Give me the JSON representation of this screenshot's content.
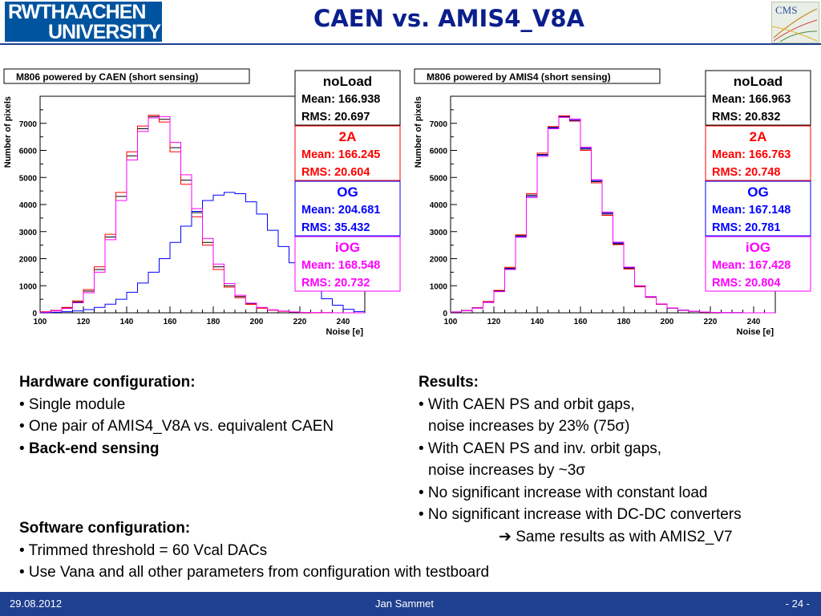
{
  "header": {
    "logo_line1": "RWTHAACHEN",
    "logo_line2": "UNIVERSITY",
    "title": "CAEN vs. AMIS4_V8A",
    "cms_logo": "CMS"
  },
  "colors": {
    "header_blue": "#1f3f8f",
    "noLoad": "#000000",
    "2A": "#ff0000",
    "OG": "#0000ff",
    "iOG": "#ff00ff"
  },
  "chart_data": [
    {
      "type": "histogram",
      "title": "M806 powered by CAEN (short sensing)",
      "xlabel": "Noise [e]",
      "ylabel": "Number of pixels",
      "xlim": [
        100,
        250
      ],
      "ylim": [
        0,
        8000
      ],
      "xticks": [
        100,
        120,
        140,
        160,
        180,
        200,
        220,
        240
      ],
      "yticks": [
        0,
        1000,
        2000,
        3000,
        4000,
        5000,
        6000,
        7000
      ],
      "bin_width": 5,
      "series": [
        {
          "name": "noLoad",
          "color": "#000000",
          "mean": "Mean: 166.938",
          "rms": "RMS: 20.697",
          "values": [
            30,
            80,
            180,
            400,
            800,
            1600,
            2800,
            4300,
            5800,
            6800,
            7250,
            7150,
            6100,
            4900,
            3700,
            2600,
            1700,
            1000,
            600,
            330,
            180,
            100,
            60,
            30,
            15,
            5,
            2,
            1,
            0,
            0
          ]
        },
        {
          "name": "2A",
          "color": "#ff0000",
          "mean": "Mean: 166.245",
          "rms": "RMS: 20.604",
          "values": [
            40,
            90,
            200,
            440,
            860,
            1700,
            2900,
            4450,
            5950,
            6900,
            7300,
            7050,
            5950,
            4750,
            3550,
            2500,
            1600,
            950,
            560,
            310,
            170,
            95,
            55,
            28,
            12,
            4,
            2,
            1,
            0,
            0
          ]
        },
        {
          "name": "OG",
          "color": "#0000ff",
          "mean": "Mean: 204.681",
          "rms": "RMS: 35.432",
          "values": [
            10,
            20,
            40,
            70,
            120,
            200,
            320,
            500,
            760,
            1100,
            1500,
            2000,
            2600,
            3200,
            3750,
            4150,
            4350,
            4450,
            4400,
            4100,
            3650,
            3050,
            2450,
            1850,
            1300,
            850,
            520,
            280,
            130,
            50
          ]
        },
        {
          "name": "iOG",
          "color": "#ff00ff",
          "mean": "Mean: 168.548",
          "rms": "RMS: 20.732",
          "values": [
            25,
            70,
            160,
            370,
            740,
            1500,
            2700,
            4150,
            5650,
            6700,
            7200,
            7250,
            6300,
            5100,
            3850,
            2750,
            1800,
            1080,
            650,
            360,
            200,
            110,
            65,
            33,
            16,
            6,
            2,
            1,
            0,
            0
          ]
        }
      ]
    },
    {
      "type": "histogram",
      "title": "M806 powered by AMIS4 (short sensing)",
      "xlabel": "Noise [e]",
      "ylabel": "Number of pixels",
      "xlim": [
        100,
        250
      ],
      "ylim": [
        0,
        8000
      ],
      "xticks": [
        100,
        120,
        140,
        160,
        180,
        200,
        220,
        240
      ],
      "yticks": [
        0,
        1000,
        2000,
        3000,
        4000,
        5000,
        6000,
        7000
      ],
      "bin_width": 5,
      "series": [
        {
          "name": "noLoad",
          "color": "#000000",
          "mean": "Mean: 166.963",
          "rms": "RMS: 20.832",
          "values": [
            30,
            80,
            180,
            400,
            800,
            1650,
            2850,
            4350,
            5850,
            6850,
            7250,
            7100,
            6050,
            4850,
            3650,
            2550,
            1650,
            980,
            580,
            320,
            175,
            95,
            55,
            28,
            12,
            4,
            2,
            1,
            0,
            0
          ]
        },
        {
          "name": "2A",
          "color": "#ff0000",
          "mean": "Mean: 166.763",
          "rms": "RMS: 20.748",
          "values": [
            32,
            85,
            190,
            420,
            830,
            1680,
            2880,
            4400,
            5900,
            6880,
            7280,
            7080,
            6000,
            4800,
            3600,
            2520,
            1620,
            960,
            570,
            315,
            172,
            93,
            54,
            27,
            11,
            4,
            2,
            1,
            0,
            0
          ]
        },
        {
          "name": "OG",
          "color": "#0000ff",
          "mean": "Mean: 167.148",
          "rms": "RMS: 20.781",
          "values": [
            28,
            78,
            175,
            390,
            790,
            1620,
            2820,
            4300,
            5820,
            6830,
            7230,
            7120,
            6080,
            4880,
            3680,
            2580,
            1670,
            990,
            590,
            325,
            178,
            97,
            57,
            29,
            13,
            5,
            2,
            1,
            0,
            0
          ]
        },
        {
          "name": "iOG",
          "color": "#ff00ff",
          "mean": "Mean: 167.428",
          "rms": "RMS: 20.804",
          "values": [
            26,
            75,
            170,
            380,
            780,
            1600,
            2790,
            4260,
            5780,
            6800,
            7220,
            7160,
            6120,
            4920,
            3720,
            2610,
            1690,
            1000,
            600,
            330,
            180,
            98,
            58,
            30,
            13,
            5,
            2,
            1,
            0,
            0
          ]
        }
      ]
    }
  ],
  "left_text": {
    "hw_head": "Hardware configuration:",
    "hw1": "• Single module",
    "hw2": "• One pair of AMIS4_V8A vs. equivalent CAEN",
    "hw3_bullet": "• ",
    "hw3_bold": "Back-end sensing",
    "sw_head": "Software configuration:",
    "sw1": "• Trimmed threshold = 60 Vcal DACs",
    "sw2": "• Use Vana and all other parameters from configuration with testboard"
  },
  "right_text": {
    "head": "Results:",
    "r1": "• With CAEN PS and orbit gaps,",
    "r1b": "noise increases by 23% (75σ)",
    "r2": "• With CAEN PS and inv. orbit gaps,",
    "r2b": "noise increases by ~3σ",
    "r3": "• No significant increase with constant load",
    "r4": "• No significant increase with DC-DC converters",
    "r5": "➔ Same results as with AMIS2_V7"
  },
  "footer": {
    "date": "29.08.2012",
    "author": "Jan Sammet",
    "page": "- 24 -"
  }
}
